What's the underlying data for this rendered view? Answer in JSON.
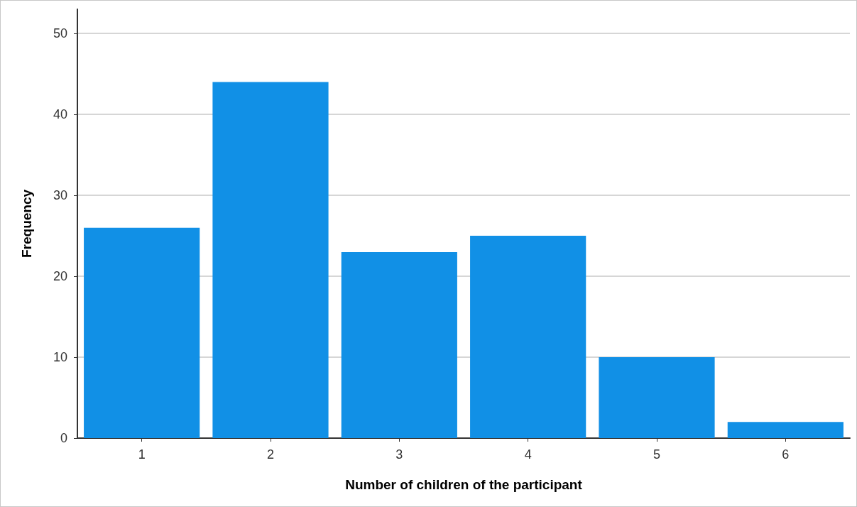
{
  "chart_data": {
    "type": "bar",
    "xlabel": "Number of children of the participant",
    "ylabel": "Frequency",
    "categories": [
      "1",
      "2",
      "3",
      "4",
      "5",
      "6"
    ],
    "values": [
      26,
      44,
      23,
      25,
      10,
      2
    ],
    "color": "#1190e6",
    "ylim": [
      0,
      53
    ],
    "yticks": [
      0,
      10,
      20,
      30,
      40,
      50
    ],
    "grid": "y"
  }
}
